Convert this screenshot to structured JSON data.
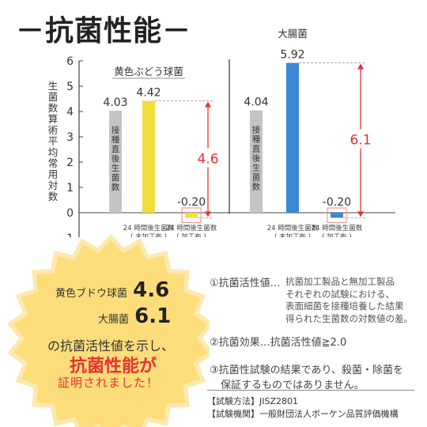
{
  "title": "－抗菌性能－",
  "chart_data": [
    {
      "type": "bar",
      "title": "黄色ぶどう球菌",
      "ylim": [
        -1,
        6
      ],
      "yticks": [
        -1,
        0,
        1,
        2,
        3,
        4,
        5,
        6
      ],
      "ylabel": "生菌数算術平均常用対数",
      "categories": [
        "接種直後生菌数",
        "24時間後生菌数（未加工布）",
        "24時間後生菌数（加工布）"
      ],
      "values": [
        4.03,
        4.42,
        -0.2
      ],
      "value_labels": [
        "4.03",
        "4.42",
        "-0.20"
      ],
      "colors": [
        "#c4c4c4",
        "#f2dd3c",
        "#f2dd3c"
      ],
      "bar_text": [
        "接種直後生菌数",
        "",
        ""
      ],
      "x_labels": [
        [
          "",
          ""
        ],
        [
          "24 時間後生菌数",
          "( 未加工布 )"
        ],
        [
          "24 時間後生菌数",
          "( 加工布 )"
        ]
      ],
      "difference": {
        "value": 4.6,
        "label": "4.6"
      }
    },
    {
      "type": "bar",
      "title": "大腸菌",
      "ylim": [
        -1,
        6
      ],
      "categories": [
        "接種直後生菌数",
        "24時間後生菌数（未加工布）",
        "24時間後生菌数（加工布）"
      ],
      "values": [
        4.04,
        5.92,
        -0.2
      ],
      "value_labels": [
        "4.04",
        "5.92",
        "-0.20"
      ],
      "colors": [
        "#c4c4c4",
        "#3c87d8",
        "#3c87d8"
      ],
      "bar_text": [
        "接種直後生菌数",
        "",
        ""
      ],
      "x_labels": [
        [
          "",
          ""
        ],
        [
          "24 時間後生菌数",
          "( 未加工布 )"
        ],
        [
          "24 時間後生菌数",
          "( 加工布 )"
        ]
      ],
      "difference": {
        "value": 6.1,
        "label": "6.1"
      }
    }
  ],
  "colors": {
    "accent_red": "#e63232",
    "starburst": "#fddd7a",
    "starburst_outer": "#fce9b0"
  },
  "starburst": {
    "line1_label": "黄色ブドウ球菌",
    "line1_value": "4.6",
    "line2_label": "大腸菌",
    "line2_value": "6.1",
    "line3": "の抗菌活性値を示し、",
    "line4": "抗菌性能が",
    "line5": "証明されました！"
  },
  "notes": {
    "n1_head": "①抗菌活性値…",
    "n1_body": [
      "抗菌加工製品と無加工製品",
      "それぞれの試験における、",
      "表面細菌を接種培養した結果",
      "得られた生菌数の対数値の差。"
    ],
    "n2": "②抗菌効果…抗菌活性値≧2.0",
    "n3_line1": "③抗菌性試験の結果であり、殺菌・除菌を",
    "n3_line2": "保証するものではありません。"
  },
  "footer": {
    "method": "【試験方法】JISZ2801",
    "org": "【試験機関】一般財団法人ボーケン品質評価機構"
  }
}
